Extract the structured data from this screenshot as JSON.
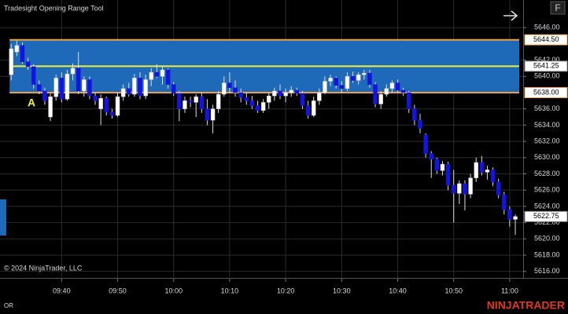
{
  "chart_data": {
    "type": "candlestick",
    "title": "Tradesight Opening Range Tool",
    "copyright": "© 2024 NinjaTrader, LLC",
    "brand": "NINJATRADER",
    "panel_label": "OR",
    "menu_button": "F",
    "marker_label": "A",
    "up_color": "#ffffff",
    "down_color": "#1414e0",
    "range_fill": "#1e6ab8",
    "range_edge_color": "#f0a040",
    "range_mid_color": "#f0f040",
    "grid": true,
    "xlim": [
      569,
      662.4
    ],
    "ylim": [
      5615.1,
      5649.4
    ],
    "xticks": [
      {
        "value": 580,
        "label": "09:40"
      },
      {
        "value": 590,
        "label": "09:50"
      },
      {
        "value": 600,
        "label": "10:00"
      },
      {
        "value": 610,
        "label": "10:10"
      },
      {
        "value": 620,
        "label": "10:20"
      },
      {
        "value": 630,
        "label": "10:30"
      },
      {
        "value": 640,
        "label": "10:40"
      },
      {
        "value": 650,
        "label": "10:50"
      },
      {
        "value": 660,
        "label": "11:00"
      }
    ],
    "yticks": [
      {
        "value": 5616,
        "label": "5616.00"
      },
      {
        "value": 5618,
        "label": "5618.00"
      },
      {
        "value": 5620,
        "label": "5620.00"
      },
      {
        "value": 5622,
        "label": "5622.00"
      },
      {
        "value": 5624,
        "label": "5624.00"
      },
      {
        "value": 5626,
        "label": "5626.00"
      },
      {
        "value": 5628,
        "label": "5628.00"
      },
      {
        "value": 5630,
        "label": "5630.00"
      },
      {
        "value": 5632,
        "label": "5632.00"
      },
      {
        "value": 5634,
        "label": "5634.00"
      },
      {
        "value": 5636,
        "label": "5636.00"
      },
      {
        "value": 5640,
        "label": "5640.00"
      },
      {
        "value": 5642,
        "label": "5642.00"
      },
      {
        "value": 5646,
        "label": "5646.00"
      }
    ],
    "opening_range": {
      "high": {
        "value": 5644.5,
        "label": "5644.50"
      },
      "mid": {
        "value": 5641.25,
        "label": "5641.25"
      },
      "low": {
        "value": 5638,
        "label": "5638.00"
      }
    },
    "last_price": {
      "value": 5622.75,
      "label": "5622.75"
    },
    "x": [
      571,
      572,
      573,
      574,
      575,
      576,
      577,
      578,
      579,
      580,
      581,
      582,
      583,
      584,
      585,
      586,
      587,
      588,
      589,
      590,
      591,
      592,
      593,
      594,
      595,
      596,
      597,
      598,
      599,
      600,
      601,
      602,
      603,
      604,
      605,
      606,
      607,
      608,
      609,
      610,
      611,
      612,
      613,
      614,
      615,
      616,
      617,
      618,
      619,
      620,
      621,
      622,
      623,
      624,
      625,
      626,
      627,
      628,
      629,
      630,
      631,
      632,
      633,
      634,
      635,
      636,
      637,
      638,
      639,
      640,
      641,
      642,
      643,
      644,
      645,
      646,
      647,
      648,
      649,
      650,
      651,
      652,
      653,
      654,
      655,
      656,
      657,
      658,
      659,
      660,
      661
    ],
    "open": [
      5640.2,
      5643.0,
      5643.8,
      5641.8,
      5641.2,
      5639.0,
      5638.2,
      5635.0,
      5637.5,
      5639.8,
      5637.2,
      5640.3,
      5641.0,
      5638.2,
      5639.6,
      5637.6,
      5636.0,
      5637.3,
      5635.6,
      5635.2,
      5637.5,
      5638.5,
      5637.8,
      5639.8,
      5637.6,
      5639.6,
      5640.5,
      5640.0,
      5640.8,
      5639.0,
      5637.9,
      5636.0,
      5637.0,
      5636.8,
      5637.5,
      5636.0,
      5634.6,
      5636.0,
      5637.8,
      5639.2,
      5638.6,
      5638.0,
      5637.4,
      5637.0,
      5636.4,
      5635.8,
      5636.8,
      5637.6,
      5638.2,
      5637.6,
      5638.0,
      5638.3,
      5637.9,
      5636.4,
      5635.2,
      5637.0,
      5638.0,
      5639.4,
      5639.8,
      5638.9,
      5638.5,
      5640.0,
      5639.5,
      5640.2,
      5640.4,
      5639.0,
      5636.6,
      5637.8,
      5638.5,
      5639.2,
      5638.3,
      5638.0,
      5636.0,
      5634.6,
      5632.8,
      5630.5,
      5629.8,
      5628.4,
      5629.2,
      5626.6,
      5625.6,
      5626.8,
      5625.5,
      5627.5,
      5629.4,
      5628.2,
      5628.5,
      5627.0,
      5625.4,
      5623.6,
      5622.4
    ],
    "high": [
      5644.0,
      5644.4,
      5644.2,
      5642.3,
      5641.5,
      5639.5,
      5638.6,
      5637.9,
      5640.2,
      5640.5,
      5640.8,
      5641.6,
      5643.0,
      5640.0,
      5640.0,
      5638.0,
      5637.8,
      5637.5,
      5636.0,
      5638.0,
      5639.0,
      5639.2,
      5640.3,
      5640.5,
      5640.2,
      5641.0,
      5641.5,
      5641.3,
      5641.0,
      5639.3,
      5638.2,
      5637.5,
      5637.5,
      5637.8,
      5638.0,
      5637.2,
      5636.5,
      5638.2,
      5640.0,
      5640.5,
      5639.5,
      5638.5,
      5638.0,
      5637.6,
      5637.0,
      5637.2,
      5638.0,
      5638.6,
      5639.0,
      5638.5,
      5638.8,
      5638.6,
      5638.2,
      5637.0,
      5637.5,
      5638.5,
      5640.0,
      5640.2,
      5640.0,
      5639.4,
      5640.5,
      5640.6,
      5640.5,
      5640.8,
      5640.8,
      5639.3,
      5638.2,
      5639.0,
      5639.5,
      5639.6,
      5638.6,
      5638.2,
      5636.5,
      5635.4,
      5633.0,
      5630.8,
      5630.0,
      5629.6,
      5629.5,
      5628.5,
      5627.2,
      5627.2,
      5628.0,
      5630.0,
      5630.2,
      5629.0,
      5628.8,
      5627.4,
      5625.8,
      5624.0,
      5623.0
    ],
    "low": [
      5639.5,
      5642.5,
      5641.5,
      5640.8,
      5638.5,
      5637.8,
      5636.5,
      5634.5,
      5637.0,
      5636.8,
      5637.0,
      5639.5,
      5637.8,
      5637.5,
      5637.2,
      5636.5,
      5634.0,
      5635.2,
      5634.8,
      5635.0,
      5637.0,
      5637.5,
      5637.5,
      5637.2,
      5637.2,
      5638.8,
      5639.8,
      5639.0,
      5638.5,
      5637.6,
      5634.5,
      5635.5,
      5636.2,
      5635.0,
      5635.5,
      5634.0,
      5633.0,
      5635.5,
      5637.5,
      5638.0,
      5637.5,
      5636.8,
      5636.5,
      5636.0,
      5635.5,
      5635.5,
      5636.0,
      5637.0,
      5637.2,
      5636.8,
      5637.5,
      5637.6,
      5636.0,
      5634.8,
      5635.0,
      5636.5,
      5637.8,
      5638.8,
      5638.5,
      5638.0,
      5638.2,
      5639.2,
      5639.0,
      5639.6,
      5638.6,
      5636.2,
      5636.0,
      5637.5,
      5638.0,
      5638.0,
      5637.6,
      5635.5,
      5634.0,
      5633.0,
      5630.0,
      5627.5,
      5628.0,
      5627.8,
      5626.0,
      5622.0,
      5624.3,
      5623.5,
      5625.0,
      5627.0,
      5627.8,
      5627.3,
      5626.5,
      5625.0,
      5623.0,
      5621.5,
      5620.5
    ],
    "close": [
      5643.4,
      5643.8,
      5641.8,
      5641.2,
      5639.0,
      5638.2,
      5637.0,
      5637.5,
      5639.8,
      5637.2,
      5640.3,
      5641.0,
      5638.2,
      5639.6,
      5637.6,
      5637.0,
      5637.3,
      5635.6,
      5635.2,
      5637.5,
      5638.5,
      5637.8,
      5639.8,
      5637.6,
      5639.6,
      5640.5,
      5640.0,
      5640.8,
      5639.0,
      5637.9,
      5636.0,
      5637.0,
      5636.8,
      5637.5,
      5636.0,
      5634.6,
      5636.0,
      5637.8,
      5639.2,
      5638.6,
      5638.0,
      5637.4,
      5637.0,
      5636.4,
      5635.8,
      5636.8,
      5637.6,
      5638.2,
      5637.6,
      5638.0,
      5638.3,
      5637.9,
      5636.4,
      5635.2,
      5637.0,
      5638.0,
      5639.4,
      5639.8,
      5638.9,
      5638.5,
      5640.0,
      5639.5,
      5640.2,
      5640.4,
      5639.0,
      5636.6,
      5637.8,
      5638.5,
      5639.2,
      5638.3,
      5638.0,
      5636.0,
      5634.6,
      5633.6,
      5630.5,
      5629.8,
      5628.4,
      5629.2,
      5626.6,
      5625.6,
      5626.8,
      5625.5,
      5627.5,
      5629.4,
      5628.2,
      5628.5,
      5627.0,
      5625.4,
      5623.6,
      5622.4,
      5622.75
    ]
  }
}
